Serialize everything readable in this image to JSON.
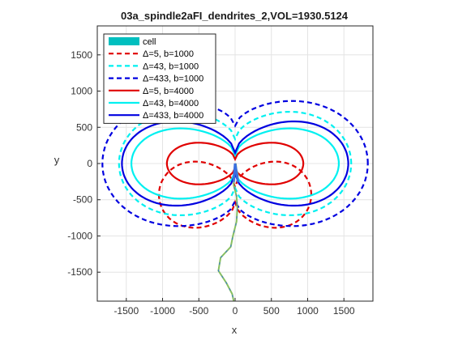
{
  "chart_data": {
    "type": "line",
    "title": "03a_spindle2aFI_dendrites_2,VOL=1930.5124",
    "xlabel": "x",
    "ylabel": "y",
    "xlim": [
      -1900,
      1900
    ],
    "ylim": [
      -1900,
      1900
    ],
    "xticks": [
      -1500,
      -1000,
      -500,
      0,
      500,
      1000,
      1500
    ],
    "yticks": [
      -1500,
      -1000,
      -500,
      0,
      500,
      1000,
      1500
    ],
    "grid": true,
    "legend_position": "top-left",
    "series": [
      {
        "name": "cell",
        "color": "#00bfbf",
        "style": "patch",
        "points": [
          [
            -10,
            -1945
          ],
          [
            -40,
            -1800
          ],
          [
            -120,
            -1650
          ],
          [
            -230,
            -1480
          ],
          [
            -200,
            -1300
          ],
          [
            -60,
            -1150
          ],
          [
            -30,
            -1000
          ],
          [
            20,
            -800
          ],
          [
            30,
            -620
          ],
          [
            20,
            -450
          ],
          [
            -20,
            -300
          ],
          [
            -10,
            -150
          ],
          [
            0,
            -50
          ],
          [
            10,
            0
          ],
          [
            20,
            -90
          ],
          [
            40,
            -160
          ],
          [
            30,
            -240
          ]
        ]
      },
      {
        "name": "Δ=5, b=1000",
        "color": "#e00000",
        "style": "dashed",
        "shape": "lemniscate",
        "cx": 0,
        "cy": -430,
        "halfwidth": 1050,
        "waist": 160,
        "edge": 680
      },
      {
        "name": "Δ=43, b=1000",
        "color": "#00f0f0",
        "style": "dashed",
        "shape": "lemniscate",
        "cx": 0,
        "cy": 0,
        "halfwidth": 1600,
        "waist": 540,
        "edge": 1000
      },
      {
        "name": "Δ=433, b=1000",
        "color": "#0000e0",
        "style": "dashed",
        "shape": "lemniscate",
        "cx": 0,
        "cy": 0,
        "halfwidth": 1830,
        "waist": 820,
        "edge": 1160
      },
      {
        "name": "Δ=5, b=4000",
        "color": "#e00000",
        "style": "solid",
        "shape": "lemniscate",
        "cx": 0,
        "cy": 0,
        "halfwidth": 940,
        "waist": 130,
        "edge": 430
      },
      {
        "name": "Δ=43, b=4000",
        "color": "#00f0f0",
        "style": "solid",
        "shape": "lemniscate",
        "cx": 0,
        "cy": 0,
        "halfwidth": 1430,
        "waist": 230,
        "edge": 720
      },
      {
        "name": "Δ=433, b=4000",
        "color": "#0000e0",
        "style": "solid",
        "shape": "lemniscate",
        "cx": 0,
        "cy": 0,
        "halfwidth": 1560,
        "waist": 270,
        "edge": 860
      }
    ]
  }
}
